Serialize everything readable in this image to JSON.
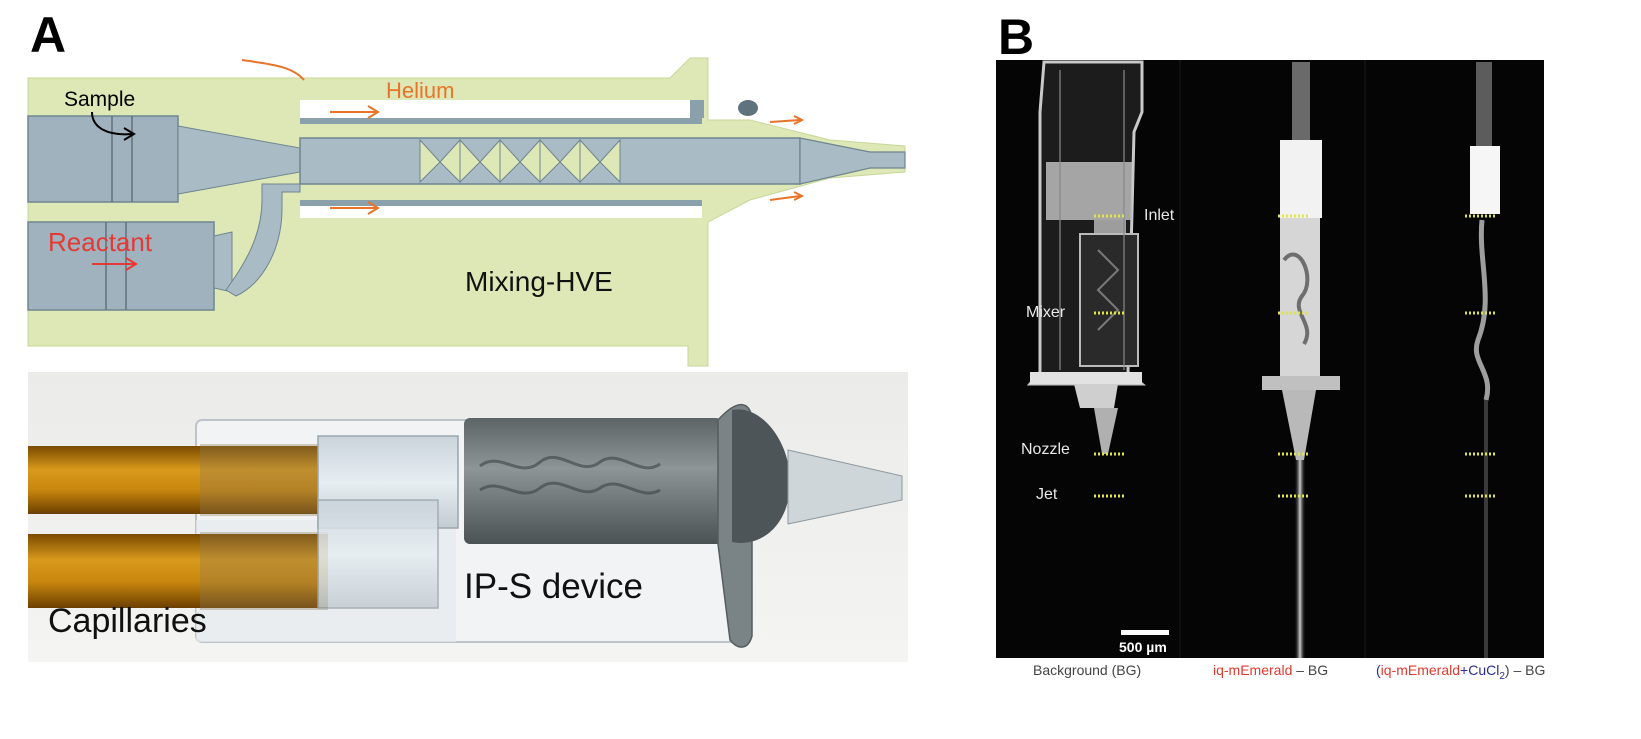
{
  "figure": {
    "panel_a": {
      "letter": "A",
      "schematic": {
        "sample_label": "Sample",
        "helium_label": "Helium",
        "reactant_label": "Reactant",
        "device_label": "Mixing-HVE",
        "colors": {
          "housing": "#dde8b6",
          "metal": "#9fb2bd",
          "helium": "#e8742a",
          "reactant": "#e53935"
        }
      },
      "photo": {
        "device_label": "IP-S device",
        "capillaries_label": "Capillaries"
      }
    },
    "panel_b": {
      "letter": "B",
      "left_labels": {
        "inlet": "Inlet",
        "mixer": "Mixer",
        "nozzle": "Nozzle",
        "jet": "Jet"
      },
      "scale_bar": "500 µm",
      "captions": {
        "background": "Background (BG)",
        "emerald_name": "iq-mEmerald",
        "emerald_suffix": " – BG",
        "third_open": "(",
        "third_name": "iq-mEmerald",
        "third_plus": "+",
        "third_salt": "CuCl",
        "third_sub": "2",
        "third_close": ") – BG"
      },
      "colors": {
        "marker": "#e0e34a",
        "red_caption": "#e03a2f",
        "blue_caption": "#2b2f8f"
      }
    }
  }
}
